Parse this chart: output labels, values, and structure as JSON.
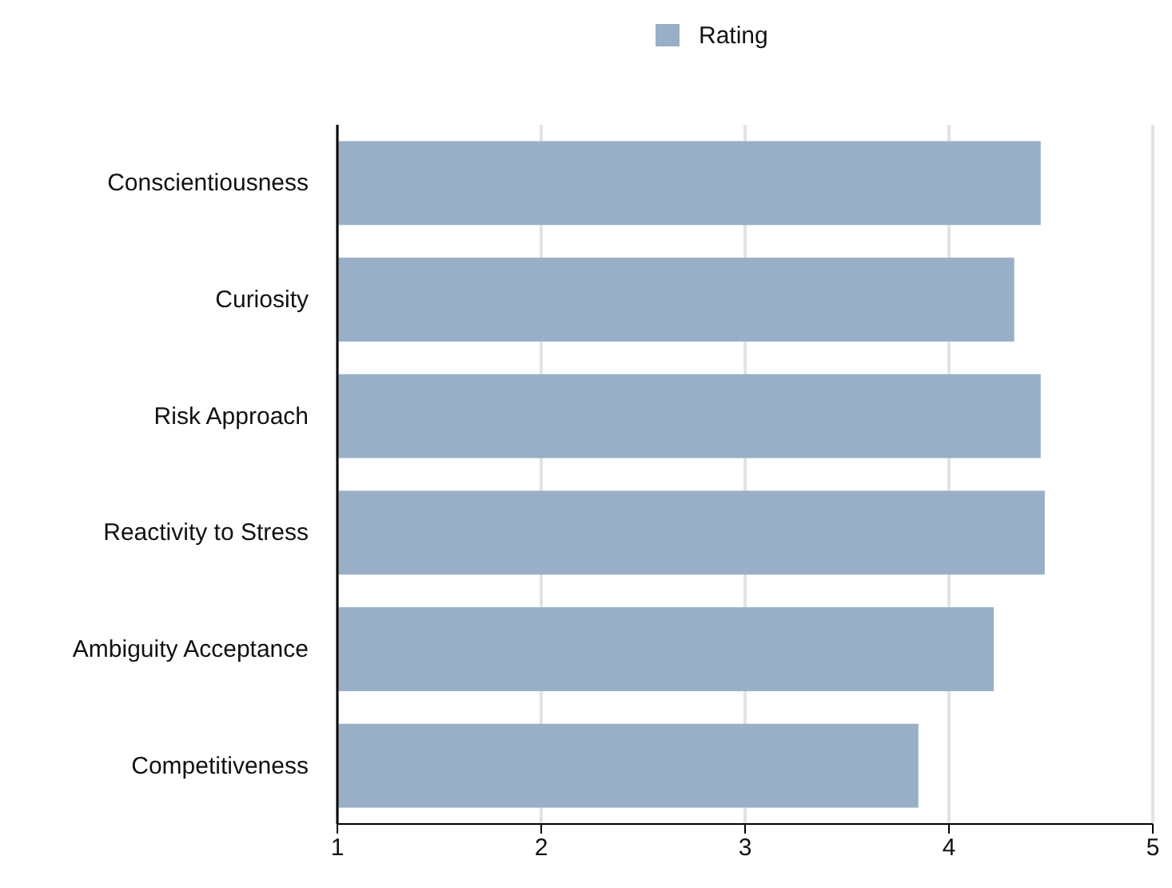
{
  "chart_data": {
    "type": "bar",
    "orientation": "horizontal",
    "categories": [
      "Conscientiousness",
      "Curiosity",
      "Risk Approach",
      "Reactivity to Stress",
      "Ambiguity Acceptance",
      "Competitiveness"
    ],
    "series": [
      {
        "name": "Rating",
        "color": "#99afc8",
        "values": [
          4.45,
          4.32,
          4.45,
          4.47,
          4.22,
          3.85
        ]
      }
    ],
    "xlim": [
      1,
      5
    ],
    "xticks": [
      1,
      2,
      3,
      4,
      5
    ],
    "grid": "x",
    "legend": "top"
  }
}
